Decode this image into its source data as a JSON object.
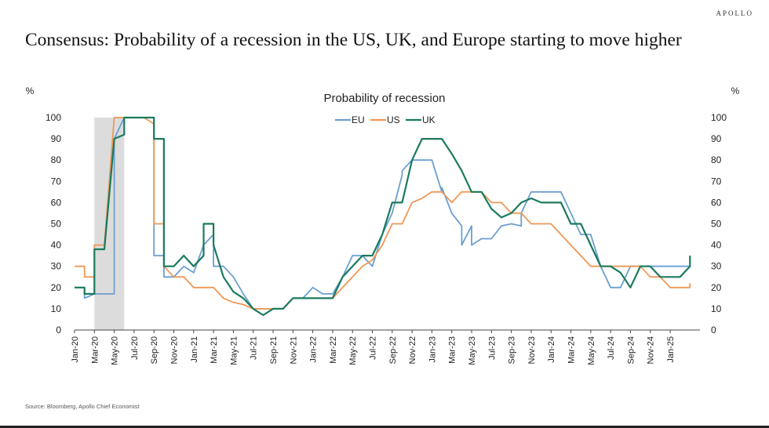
{
  "header": {
    "brand": "APOLLO",
    "headline": "Consensus: Probability of  a recession in the US, UK, and Europe starting to move higher"
  },
  "footer": {
    "source": "Source: Bloomberg, Apollo Chief Economist"
  },
  "colors": {
    "EU": "#6b9fd0",
    "US": "#ee9856",
    "UK": "#1a7a5e",
    "recession_band": "#dcdcdc"
  },
  "chart_data": {
    "type": "line",
    "title": "Probability of recession",
    "ylabel_left": "%",
    "ylabel_right": "%",
    "ylim": [
      0,
      100
    ],
    "yticks": [
      0,
      10,
      20,
      30,
      40,
      50,
      60,
      70,
      80,
      90,
      100
    ],
    "xlim": [
      "2020-01",
      "2025-04"
    ],
    "xticks": [
      "Jan-20",
      "Mar-20",
      "May-20",
      "Jul-20",
      "Sep-20",
      "Nov-20",
      "Jan-21",
      "Mar-21",
      "May-21",
      "Jul-21",
      "Sep-21",
      "Nov-21",
      "Jan-22",
      "Mar-22",
      "May-22",
      "Jul-22",
      "Sep-22",
      "Nov-22",
      "Jan-23",
      "Mar-23",
      "May-23",
      "Jul-23",
      "Sep-23",
      "Nov-23",
      "Jan-24",
      "Mar-24",
      "May-24",
      "Jul-24",
      "Sep-24",
      "Nov-24",
      "Jan-25"
    ],
    "recession_band": [
      "2020-03",
      "2020-06"
    ],
    "legend": "top-center",
    "grid": false,
    "series": [
      {
        "name": "EU",
        "points": [
          [
            "2020-01",
            20
          ],
          [
            "2020-02",
            20
          ],
          [
            "2020-02",
            15
          ],
          [
            "2020-03",
            17
          ],
          [
            "2020-04",
            17
          ],
          [
            "2020-05",
            17
          ],
          [
            "2020-05",
            90
          ],
          [
            "2020-06",
            100
          ],
          [
            "2020-07",
            100
          ],
          [
            "2020-08",
            100
          ],
          [
            "2020-09",
            100
          ],
          [
            "2020-09",
            35
          ],
          [
            "2020-10",
            35
          ],
          [
            "2020-10",
            25
          ],
          [
            "2020-11",
            25
          ],
          [
            "2020-12",
            30
          ],
          [
            "2021-01",
            27
          ],
          [
            "2021-02",
            40
          ],
          [
            "2021-03",
            45
          ],
          [
            "2021-03",
            30
          ],
          [
            "2021-04",
            30
          ],
          [
            "2021-05",
            25
          ],
          [
            "2021-06",
            17
          ],
          [
            "2021-07",
            10
          ],
          [
            "2021-08",
            10
          ],
          [
            "2021-09",
            10
          ],
          [
            "2021-10",
            10
          ],
          [
            "2021-11",
            15
          ],
          [
            "2021-12",
            15
          ],
          [
            "2022-01",
            20
          ],
          [
            "2022-02",
            17
          ],
          [
            "2022-03",
            17
          ],
          [
            "2022-04",
            25
          ],
          [
            "2022-05",
            35
          ],
          [
            "2022-06",
            35
          ],
          [
            "2022-07",
            30
          ],
          [
            "2022-08",
            45
          ],
          [
            "2022-09",
            55
          ],
          [
            "2022-10",
            73
          ],
          [
            "2022-10",
            75
          ],
          [
            "2022-11",
            80
          ],
          [
            "2022-12",
            80
          ],
          [
            "2023-01",
            80
          ],
          [
            "2023-02",
            65
          ],
          [
            "2023-02",
            67
          ],
          [
            "2023-03",
            55
          ],
          [
            "2023-04",
            49
          ],
          [
            "2023-04",
            40
          ],
          [
            "2023-05",
            49
          ],
          [
            "2023-05",
            40
          ],
          [
            "2023-06",
            43
          ],
          [
            "2023-07",
            43
          ],
          [
            "2023-08",
            49
          ],
          [
            "2023-09",
            50
          ],
          [
            "2023-10",
            49
          ],
          [
            "2023-10",
            55
          ],
          [
            "2023-11",
            65
          ],
          [
            "2023-12",
            65
          ],
          [
            "2024-01",
            65
          ],
          [
            "2024-02",
            65
          ],
          [
            "2024-03",
            55
          ],
          [
            "2024-04",
            45
          ],
          [
            "2024-05",
            45
          ],
          [
            "2024-06",
            30
          ],
          [
            "2024-07",
            20
          ],
          [
            "2024-08",
            20
          ],
          [
            "2024-09",
            30
          ],
          [
            "2024-10",
            30
          ],
          [
            "2024-11",
            30
          ],
          [
            "2024-12",
            30
          ],
          [
            "2025-01",
            30
          ],
          [
            "2025-02",
            30
          ],
          [
            "2025-03",
            30
          ]
        ]
      },
      {
        "name": "US",
        "points": [
          [
            "2020-01",
            30
          ],
          [
            "2020-02",
            30
          ],
          [
            "2020-02",
            25
          ],
          [
            "2020-03",
            25
          ],
          [
            "2020-03",
            40
          ],
          [
            "2020-04",
            40
          ],
          [
            "2020-05",
            100
          ],
          [
            "2020-06",
            100
          ],
          [
            "2020-07",
            100
          ],
          [
            "2020-08",
            100
          ],
          [
            "2020-09",
            97
          ],
          [
            "2020-09",
            50
          ],
          [
            "2020-10",
            50
          ],
          [
            "2020-10",
            30
          ],
          [
            "2020-11",
            25
          ],
          [
            "2020-12",
            25
          ],
          [
            "2021-01",
            20
          ],
          [
            "2021-02",
            20
          ],
          [
            "2021-03",
            20
          ],
          [
            "2021-04",
            15
          ],
          [
            "2021-05",
            13
          ],
          [
            "2021-06",
            12
          ],
          [
            "2021-07",
            10
          ],
          [
            "2021-08",
            10
          ],
          [
            "2021-09",
            10
          ],
          [
            "2021-10",
            10
          ],
          [
            "2021-11",
            15
          ],
          [
            "2021-12",
            15
          ],
          [
            "2022-01",
            15
          ],
          [
            "2022-02",
            15
          ],
          [
            "2022-03",
            15
          ],
          [
            "2022-04",
            20
          ],
          [
            "2022-05",
            25
          ],
          [
            "2022-06",
            30
          ],
          [
            "2022-07",
            33
          ],
          [
            "2022-08",
            40
          ],
          [
            "2022-09",
            50
          ],
          [
            "2022-10",
            50
          ],
          [
            "2022-11",
            60
          ],
          [
            "2022-12",
            62
          ],
          [
            "2023-01",
            65
          ],
          [
            "2023-02",
            65
          ],
          [
            "2023-03",
            60
          ],
          [
            "2023-04",
            65
          ],
          [
            "2023-05",
            65
          ],
          [
            "2023-06",
            65
          ],
          [
            "2023-07",
            60
          ],
          [
            "2023-08",
            60
          ],
          [
            "2023-09",
            55
          ],
          [
            "2023-10",
            55
          ],
          [
            "2023-11",
            50
          ],
          [
            "2023-12",
            50
          ],
          [
            "2024-01",
            50
          ],
          [
            "2024-02",
            45
          ],
          [
            "2024-03",
            40
          ],
          [
            "2024-04",
            35
          ],
          [
            "2024-05",
            30
          ],
          [
            "2024-06",
            30
          ],
          [
            "2024-07",
            30
          ],
          [
            "2024-08",
            30
          ],
          [
            "2024-09",
            30
          ],
          [
            "2024-10",
            30
          ],
          [
            "2024-11",
            25
          ],
          [
            "2024-12",
            25
          ],
          [
            "2025-01",
            20
          ],
          [
            "2025-02",
            20
          ],
          [
            "2025-03",
            20
          ],
          [
            "2025-03",
            22
          ]
        ]
      },
      {
        "name": "UK",
        "points": [
          [
            "2020-01",
            20
          ],
          [
            "2020-02",
            20
          ],
          [
            "2020-02",
            17
          ],
          [
            "2020-03",
            17
          ],
          [
            "2020-03",
            38
          ],
          [
            "2020-04",
            38
          ],
          [
            "2020-05",
            90
          ],
          [
            "2020-06",
            92
          ],
          [
            "2020-06",
            100
          ],
          [
            "2020-07",
            100
          ],
          [
            "2020-08",
            100
          ],
          [
            "2020-09",
            100
          ],
          [
            "2020-09",
            90
          ],
          [
            "2020-10",
            90
          ],
          [
            "2020-10",
            30
          ],
          [
            "2020-11",
            30
          ],
          [
            "2020-12",
            35
          ],
          [
            "2021-01",
            30
          ],
          [
            "2021-02",
            35
          ],
          [
            "2021-02",
            50
          ],
          [
            "2021-03",
            50
          ],
          [
            "2021-03",
            40
          ],
          [
            "2021-04",
            25
          ],
          [
            "2021-05",
            18
          ],
          [
            "2021-06",
            15
          ],
          [
            "2021-07",
            10
          ],
          [
            "2021-08",
            7
          ],
          [
            "2021-09",
            10
          ],
          [
            "2021-10",
            10
          ],
          [
            "2021-11",
            15
          ],
          [
            "2021-12",
            15
          ],
          [
            "2022-01",
            15
          ],
          [
            "2022-02",
            15
          ],
          [
            "2022-03",
            15
          ],
          [
            "2022-04",
            25
          ],
          [
            "2022-05",
            30
          ],
          [
            "2022-06",
            35
          ],
          [
            "2022-07",
            35
          ],
          [
            "2022-08",
            45
          ],
          [
            "2022-09",
            60
          ],
          [
            "2022-10",
            60
          ],
          [
            "2022-11",
            80
          ],
          [
            "2022-12",
            90
          ],
          [
            "2023-01",
            90
          ],
          [
            "2023-02",
            90
          ],
          [
            "2023-03",
            83
          ],
          [
            "2023-04",
            75
          ],
          [
            "2023-05",
            65
          ],
          [
            "2023-06",
            65
          ],
          [
            "2023-07",
            57
          ],
          [
            "2023-08",
            53
          ],
          [
            "2023-09",
            55
          ],
          [
            "2023-10",
            60
          ],
          [
            "2023-11",
            62
          ],
          [
            "2023-12",
            60
          ],
          [
            "2024-01",
            60
          ],
          [
            "2024-02",
            60
          ],
          [
            "2024-03",
            50
          ],
          [
            "2024-04",
            50
          ],
          [
            "2024-05",
            40
          ],
          [
            "2024-06",
            30
          ],
          [
            "2024-07",
            30
          ],
          [
            "2024-08",
            27
          ],
          [
            "2024-09",
            20
          ],
          [
            "2024-10",
            30
          ],
          [
            "2024-11",
            30
          ],
          [
            "2024-12",
            25
          ],
          [
            "2025-01",
            25
          ],
          [
            "2025-02",
            25
          ],
          [
            "2025-03",
            30
          ],
          [
            "2025-03",
            35
          ]
        ]
      }
    ]
  }
}
